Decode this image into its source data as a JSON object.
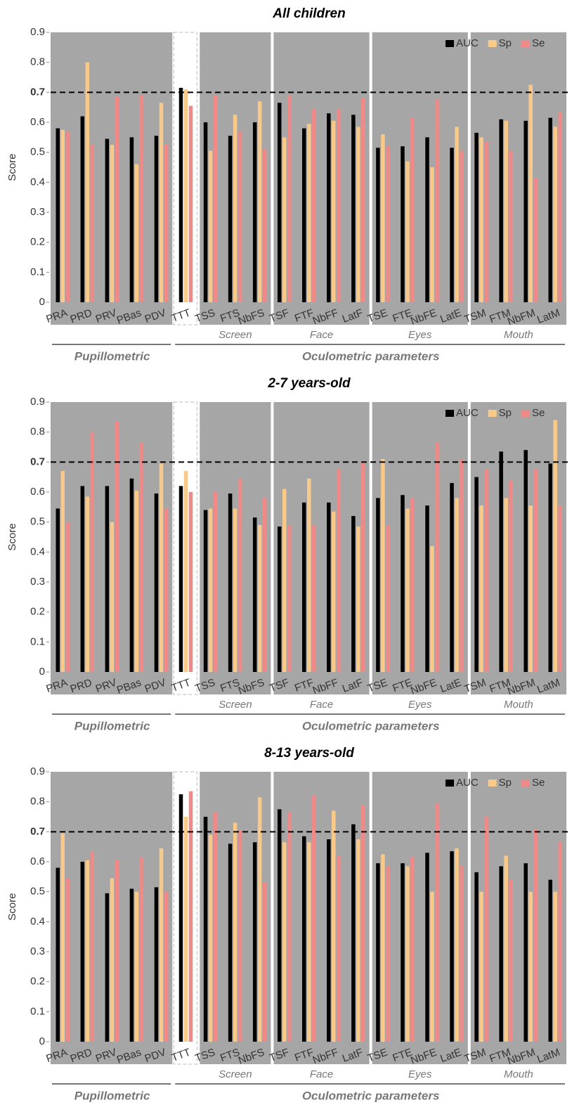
{
  "chart_data": [
    {
      "type": "bar",
      "title": "All children",
      "y_label": "Score",
      "categories": [
        "PRA",
        "PRD",
        "PRV",
        "PBas",
        "PDV",
        "TTT",
        "TSS",
        "FTS",
        "NbFS",
        "TSF",
        "FTF",
        "NbFF",
        "LatF",
        "TSE",
        "FTE",
        "NbFE",
        "LatE",
        "TSM",
        "FTM",
        "NbFM",
        "LatM"
      ],
      "groups": [
        {
          "name": "Screen",
          "categories": [
            "TSS",
            "FTS",
            "NbFS"
          ]
        },
        {
          "name": "Face",
          "categories": [
            "TSF",
            "FTF",
            "NbFF",
            "LatF"
          ]
        },
        {
          "name": "Eyes",
          "categories": [
            "TSE",
            "FTE",
            "NbFE",
            "LatE"
          ]
        },
        {
          "name": "Mouth",
          "categories": [
            "TSM",
            "FTM",
            "NbFM",
            "LatM"
          ]
        }
      ],
      "supergroups": [
        {
          "name": "Pupillometric",
          "categories": [
            "PRA",
            "PRD",
            "PRV",
            "PBas",
            "PDV"
          ]
        },
        {
          "name": "Oculometric parameters",
          "categories": [
            "TTT",
            "TSS",
            "FTS",
            "NbFS",
            "TSF",
            "FTF",
            "NbFF",
            "LatF",
            "TSE",
            "FTE",
            "NbFE",
            "LatE",
            "TSM",
            "FTM",
            "NbFM",
            "LatM"
          ]
        }
      ],
      "series": [
        {
          "name": "AUC",
          "color": "#000000",
          "values": [
            0.58,
            0.62,
            0.545,
            0.55,
            0.555,
            0.715,
            0.6,
            0.555,
            0.6,
            0.665,
            0.58,
            0.63,
            0.625,
            0.515,
            0.52,
            0.55,
            0.515,
            0.565,
            0.61,
            0.605,
            0.615
          ]
        },
        {
          "name": "Sp",
          "color": "#f9c98a",
          "values": [
            0.575,
            0.8,
            0.525,
            0.46,
            0.665,
            0.71,
            0.505,
            0.625,
            0.67,
            0.55,
            0.595,
            0.605,
            0.585,
            0.56,
            0.47,
            0.45,
            0.585,
            0.55,
            0.605,
            0.725,
            0.585
          ]
        },
        {
          "name": "Se",
          "color": "#f08a88",
          "values": [
            0.57,
            0.525,
            0.685,
            0.69,
            0.525,
            0.655,
            0.69,
            0.57,
            0.51,
            0.69,
            0.645,
            0.645,
            0.68,
            0.52,
            0.615,
            0.675,
            0.505,
            0.535,
            0.505,
            0.415,
            0.635
          ]
        }
      ],
      "ylim": [
        0,
        0.9
      ],
      "yticks": [
        0,
        0.1,
        0.2,
        0.3,
        0.4,
        0.5,
        0.6,
        0.7,
        0.8,
        0.9
      ],
      "reference_line": 0.7,
      "legend": "top-right"
    },
    {
      "type": "bar",
      "title": "2-7 years-old",
      "y_label": "Score",
      "categories": [
        "PRA",
        "PRD",
        "PRV",
        "PBas",
        "PDV",
        "TTT",
        "TSS",
        "FTS",
        "NbFS",
        "TSF",
        "FTF",
        "NbFF",
        "LatF",
        "TSE",
        "FTE",
        "NbFE",
        "LatE",
        "TSM",
        "FTM",
        "NbFM",
        "LatM"
      ],
      "groups": [
        {
          "name": "Screen",
          "categories": [
            "TSS",
            "FTS",
            "NbFS"
          ]
        },
        {
          "name": "Face",
          "categories": [
            "TSF",
            "FTF",
            "NbFF",
            "LatF"
          ]
        },
        {
          "name": "Eyes",
          "categories": [
            "TSE",
            "FTE",
            "NbFE",
            "LatE"
          ]
        },
        {
          "name": "Mouth",
          "categories": [
            "TSM",
            "FTM",
            "NbFM",
            "LatM"
          ]
        }
      ],
      "supergroups": [
        {
          "name": "Pupillometric",
          "categories": [
            "PRA",
            "PRD",
            "PRV",
            "PBas",
            "PDV"
          ]
        },
        {
          "name": "Oculometric parameters",
          "categories": [
            "TTT",
            "TSS",
            "FTS",
            "NbFS",
            "TSF",
            "FTF",
            "NbFF",
            "LatF",
            "TSE",
            "FTE",
            "NbFE",
            "LatE",
            "TSM",
            "FTM",
            "NbFM",
            "LatM"
          ]
        }
      ],
      "series": [
        {
          "name": "AUC",
          "color": "#000000",
          "values": [
            0.545,
            0.62,
            0.62,
            0.645,
            0.595,
            0.62,
            0.54,
            0.595,
            0.515,
            0.485,
            0.565,
            0.565,
            0.52,
            0.58,
            0.59,
            0.555,
            0.63,
            0.65,
            0.735,
            0.74,
            0.695
          ]
        },
        {
          "name": "Sp",
          "color": "#f9c98a",
          "values": [
            0.67,
            0.585,
            0.5,
            0.605,
            0.695,
            0.67,
            0.545,
            0.545,
            0.49,
            0.61,
            0.645,
            0.535,
            0.485,
            0.71,
            0.545,
            0.42,
            0.58,
            0.555,
            0.58,
            0.555,
            0.84
          ]
        },
        {
          "name": "Se",
          "color": "#f08a88",
          "values": [
            0.5,
            0.8,
            0.835,
            0.765,
            0.545,
            0.6,
            0.6,
            0.645,
            0.58,
            0.49,
            0.49,
            0.675,
            0.7,
            0.49,
            0.58,
            0.765,
            0.71,
            0.675,
            0.64,
            0.675,
            0.555
          ]
        }
      ],
      "ylim": [
        0,
        0.9
      ],
      "yticks": [
        0,
        0.1,
        0.2,
        0.3,
        0.4,
        0.5,
        0.6,
        0.7,
        0.8,
        0.9
      ],
      "reference_line": 0.7,
      "legend": "top-right"
    },
    {
      "type": "bar",
      "title": "8-13 years-old",
      "y_label": "Score",
      "categories": [
        "PRA",
        "PRD",
        "PRV",
        "PBas",
        "PDV",
        "TTT",
        "TSS",
        "FTS",
        "NbFS",
        "TSF",
        "FTF",
        "NbFF",
        "LatF",
        "TSE",
        "FTE",
        "NbFE",
        "LatE",
        "TSM",
        "FTM",
        "NbFM",
        "LatM"
      ],
      "groups": [
        {
          "name": "Screen",
          "categories": [
            "TSS",
            "FTS",
            "NbFS"
          ]
        },
        {
          "name": "Face",
          "categories": [
            "TSF",
            "FTF",
            "NbFF",
            "LatF"
          ]
        },
        {
          "name": "Eyes",
          "categories": [
            "TSE",
            "FTE",
            "NbFE",
            "LatE"
          ]
        },
        {
          "name": "Mouth",
          "categories": [
            "TSM",
            "FTM",
            "NbFM",
            "LatM"
          ]
        }
      ],
      "supergroups": [
        {
          "name": "Pupillometric",
          "categories": [
            "PRA",
            "PRD",
            "PRV",
            "PBas",
            "PDV"
          ]
        },
        {
          "name": "Oculometric parameters",
          "categories": [
            "TTT",
            "TSS",
            "FTS",
            "NbFS",
            "TSF",
            "FTF",
            "NbFF",
            "LatF",
            "TSE",
            "FTE",
            "NbFE",
            "LatE",
            "TSM",
            "FTM",
            "NbFM",
            "LatM"
          ]
        }
      ],
      "series": [
        {
          "name": "AUC",
          "color": "#000000",
          "values": [
            0.58,
            0.6,
            0.495,
            0.51,
            0.515,
            0.825,
            0.75,
            0.66,
            0.665,
            0.775,
            0.685,
            0.675,
            0.725,
            0.595,
            0.595,
            0.63,
            0.635,
            0.565,
            0.585,
            0.595,
            0.54
          ]
        },
        {
          "name": "Sp",
          "color": "#f9c98a",
          "values": [
            0.695,
            0.605,
            0.545,
            0.5,
            0.645,
            0.75,
            0.69,
            0.73,
            0.815,
            0.665,
            0.665,
            0.77,
            0.675,
            0.625,
            0.585,
            0.5,
            0.645,
            0.5,
            0.62,
            0.5,
            0.5
          ]
        },
        {
          "name": "Se",
          "color": "#f08a88",
          "values": [
            0.545,
            0.635,
            0.605,
            0.615,
            0.5,
            0.835,
            0.765,
            0.705,
            0.53,
            0.765,
            0.82,
            0.62,
            0.79,
            0.585,
            0.615,
            0.795,
            0.585,
            0.75,
            0.54,
            0.71,
            0.665
          ]
        }
      ],
      "ylim": [
        0,
        0.9
      ],
      "yticks": [
        0,
        0.1,
        0.2,
        0.3,
        0.4,
        0.5,
        0.6,
        0.7,
        0.8,
        0.9
      ],
      "reference_line": 0.7,
      "legend": "top-right"
    }
  ]
}
